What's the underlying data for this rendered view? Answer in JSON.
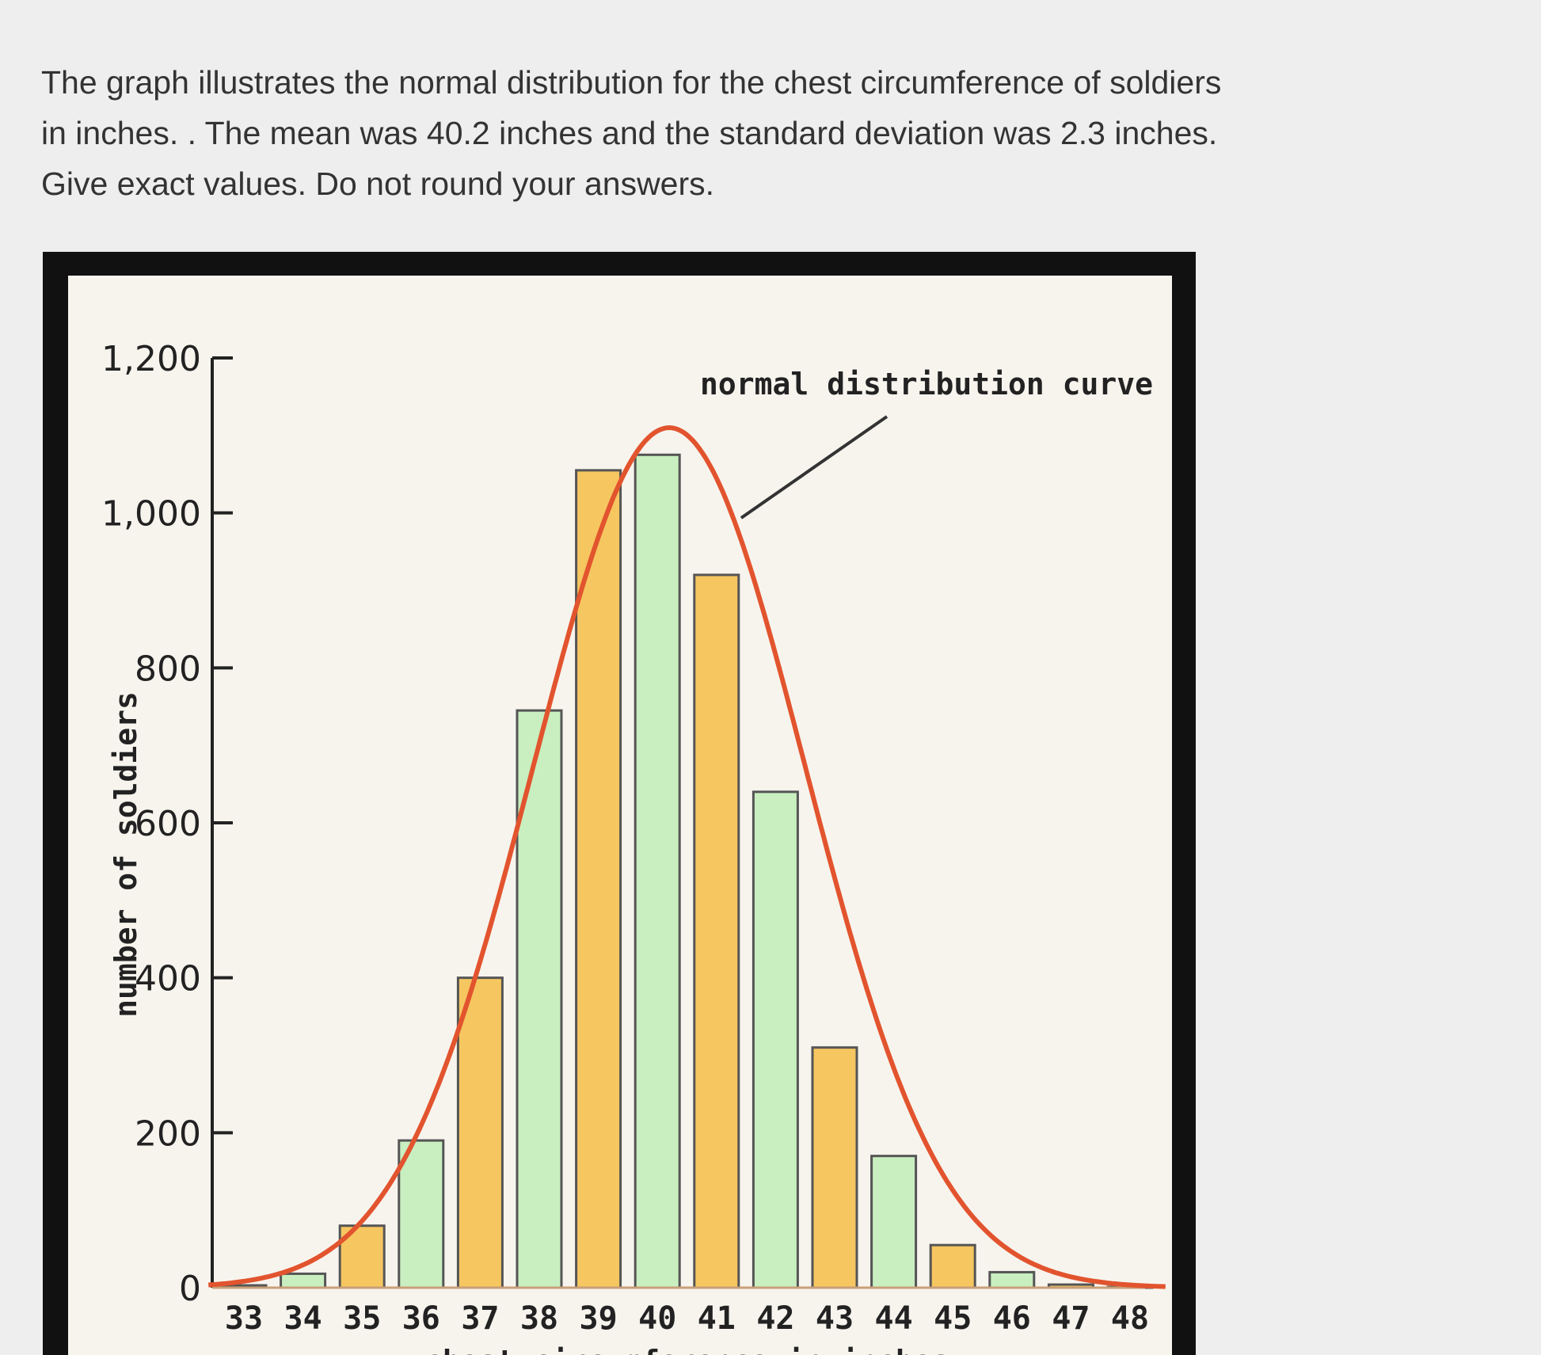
{
  "question": {
    "lines": [
      "The graph illustrates the normal distribution for the chest circumference of soldiers",
      "in inches. . The mean was 40.2 inches and the standard deviation was 2.3 inches.",
      "Give exact values. Do not round your answers."
    ]
  },
  "chart_data": {
    "type": "bar",
    "title": "",
    "xlabel": "chest circumference in inches",
    "ylabel": "number of soldiers",
    "ylim": [
      0,
      1200
    ],
    "yticks": [
      0,
      200,
      400,
      600,
      800,
      1000,
      1200
    ],
    "ytick_labels": [
      "0",
      "200",
      "400",
      "600",
      "800",
      "1,000",
      "1,200"
    ],
    "categories": [
      "33",
      "34",
      "35",
      "36",
      "37",
      "38",
      "39",
      "40",
      "41",
      "42",
      "43",
      "44",
      "45",
      "46",
      "47",
      "48"
    ],
    "values": [
      3,
      18,
      80,
      190,
      400,
      745,
      1055,
      1075,
      920,
      640,
      310,
      170,
      55,
      20,
      4,
      1
    ],
    "bar_colors": [
      "#f6c660",
      "#c9efc0"
    ],
    "bar_border": "#555555",
    "curve": {
      "label": "normal distribution curve",
      "mean": 40.2,
      "sd": 2.3,
      "peak": 1110,
      "color": "#e2542e"
    },
    "grid": false,
    "legend": "none"
  }
}
